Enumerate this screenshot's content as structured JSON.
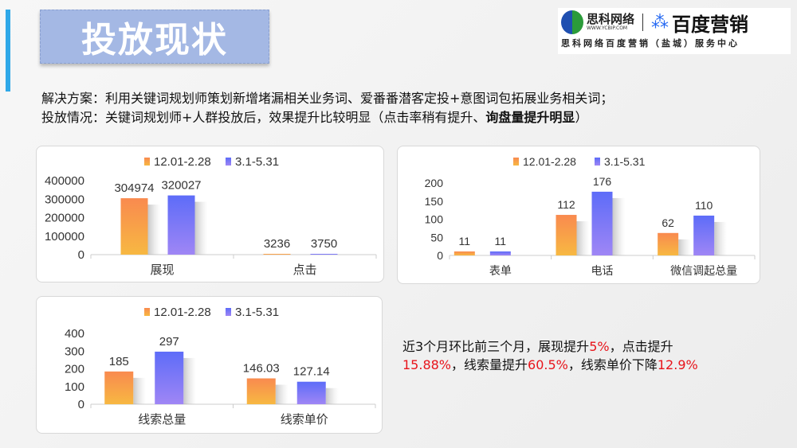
{
  "header": {
    "title": "投放现状"
  },
  "logo": {
    "brand1": "思科网络",
    "url": "WWW.YCBIP.COM",
    "brand2": "百度营销",
    "subtitle": "思科网络百度营销（盐城）服务中心"
  },
  "description": {
    "line1": "解决方案：利用关键词规划师策划新增堵漏相关业务词、爱番番潜客定投+意图词包拓展业务相关词；",
    "line2_plain": "投放情况：关键词规划师+人群投放后，效果提升比较明显（点击率稍有提升、",
    "line2_bold": "询盘量提升明显",
    "line2_end": "）"
  },
  "summary": {
    "p1": "近3个月环比前三个月，展现提升",
    "v1": "5%",
    "p2": "，点击提升",
    "v2": "15.88%",
    "p3": "，线索量提升",
    "v3": "60.5%",
    "p4": "，线索单价下降",
    "v4": "12.9%"
  },
  "colors": {
    "series1": "#f98a4f",
    "series1_bottom": "#f7b842",
    "series2": "#5d6cf8",
    "series2_bottom": "#9f86f5",
    "highlight": "#e8141b"
  },
  "chart_data": [
    {
      "type": "bar",
      "categories": [
        "展现",
        "点击"
      ],
      "series": [
        {
          "name": "12.01-2.28",
          "values": [
            304974,
            3236
          ]
        },
        {
          "name": "3.1-5.31",
          "values": [
            320027,
            3750
          ]
        }
      ],
      "yticks": [
        "0",
        "100000",
        "200000",
        "300000",
        "400000"
      ],
      "ylim": [
        0,
        400000
      ],
      "legend": "top",
      "grid": false
    },
    {
      "type": "bar",
      "categories": [
        "表单",
        "电话",
        "微信调起总量"
      ],
      "series": [
        {
          "name": "12.01-2.28",
          "values": [
            11,
            112,
            62
          ]
        },
        {
          "name": "3.1-5.31",
          "values": [
            11,
            176,
            110
          ]
        }
      ],
      "yticks": [
        "0",
        "50",
        "100",
        "150",
        "200"
      ],
      "ylim": [
        0,
        200
      ],
      "legend": "top",
      "grid": false
    },
    {
      "type": "bar",
      "categories": [
        "线索总量",
        "线索单价"
      ],
      "series": [
        {
          "name": "12.01-2.28",
          "values": [
            185,
            146.03
          ]
        },
        {
          "name": "3.1-5.31",
          "values": [
            297,
            127.14
          ]
        }
      ],
      "value_labels": [
        [
          "185",
          "146.03"
        ],
        [
          "297",
          "127.14"
        ]
      ],
      "yticks": [
        "0",
        "100",
        "200",
        "300",
        "400"
      ],
      "ylim": [
        0,
        400
      ],
      "legend": "top",
      "grid": false
    }
  ]
}
